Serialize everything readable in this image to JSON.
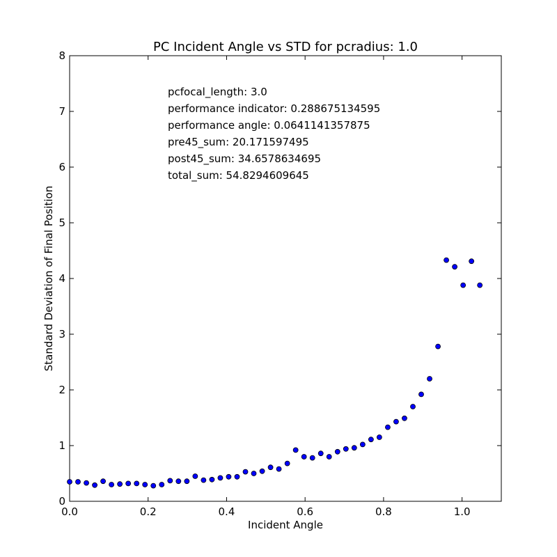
{
  "chart_data": {
    "type": "scatter",
    "title": "PC Incident Angle vs STD for pcradius: 1.0",
    "xlabel": "Incident Angle",
    "ylabel": "Standard Deviation of Final Position",
    "xlim": [
      0.0,
      1.1
    ],
    "ylim": [
      0,
      8
    ],
    "xticks": [
      0.0,
      0.2,
      0.4,
      0.6,
      0.8,
      1.0
    ],
    "xtick_labels": [
      "0.0",
      "0.2",
      "0.4",
      "0.6",
      "0.8",
      "1.0"
    ],
    "yticks": [
      0,
      1,
      2,
      3,
      4,
      5,
      6,
      7,
      8
    ],
    "ytick_labels": [
      "0",
      "1",
      "2",
      "3",
      "4",
      "5",
      "6",
      "7",
      "8"
    ],
    "grid": false,
    "marker_color": "#0000ff",
    "annotations": [
      "pcfocal_length: 3.0",
      "performance indicator: 0.288675134595",
      "performance angle: 0.0641141357875",
      "pre45_sum: 20.171597495",
      "post45_sum: 34.6578634695",
      "total_sum: 54.8294609645"
    ],
    "x": [
      0.0,
      0.0213,
      0.0427,
      0.064,
      0.0853,
      0.1067,
      0.128,
      0.1493,
      0.1707,
      0.192,
      0.2133,
      0.2347,
      0.256,
      0.2773,
      0.2987,
      0.32,
      0.3413,
      0.3627,
      0.384,
      0.4053,
      0.4267,
      0.448,
      0.4693,
      0.4907,
      0.512,
      0.5333,
      0.5547,
      0.576,
      0.5973,
      0.6187,
      0.64,
      0.6613,
      0.6827,
      0.704,
      0.7253,
      0.7467,
      0.768,
      0.7893,
      0.8107,
      0.832,
      0.8533,
      0.8747,
      0.896,
      0.9173,
      0.9387,
      0.96,
      0.9813,
      1.0027,
      1.024,
      1.0453
    ],
    "y": [
      0.35,
      0.35,
      0.33,
      0.29,
      0.36,
      0.3,
      0.31,
      0.32,
      0.32,
      0.3,
      0.28,
      0.3,
      0.37,
      0.36,
      0.36,
      0.45,
      0.38,
      0.39,
      0.42,
      0.44,
      0.44,
      0.53,
      0.5,
      0.54,
      0.61,
      0.58,
      0.68,
      0.92,
      0.8,
      0.78,
      0.86,
      0.8,
      0.89,
      0.94,
      0.96,
      1.02,
      1.11,
      1.15,
      1.33,
      1.43,
      1.49,
      1.7,
      1.92,
      2.2,
      2.78,
      4.33,
      4.21,
      3.88,
      4.31,
      3.88
    ]
  }
}
